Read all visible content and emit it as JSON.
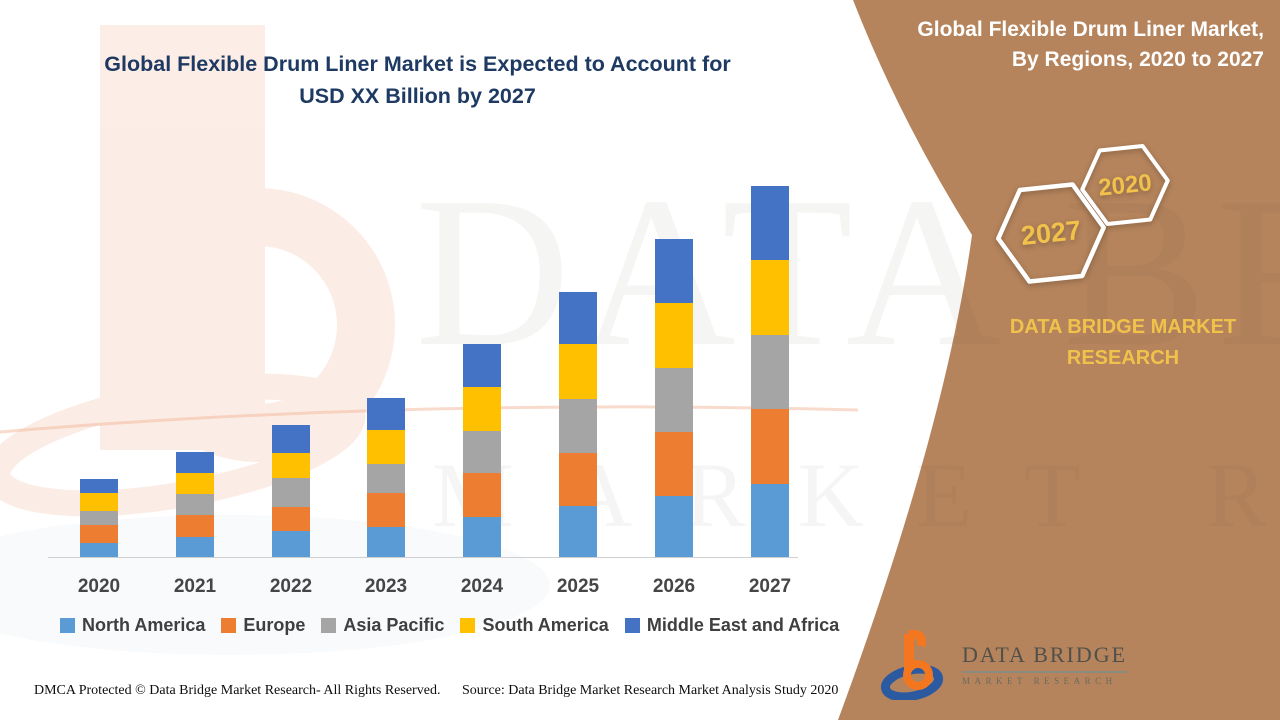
{
  "page": {
    "title_line1": "Global Flexible Drum Liner Market is Expected to Account for",
    "title_line2": "USD XX Billion by 2027",
    "footer_left": "DMCA Protected © Data Bridge Market Research- All Rights Reserved.",
    "footer_right": "Source: Data Bridge Market Research Market Analysis Study 2020"
  },
  "watermark": {
    "line1": "DATA BRIDGE",
    "line2": "MARKET RESEARCH"
  },
  "panel": {
    "title_line1": "Global Flexible Drum Liner Market,",
    "title_line2": "By Regions, 2020 to 2027",
    "hexagons": {
      "large_label": "2027",
      "small_label": "2020"
    },
    "brand_line1": "DATA BRIDGE MARKET",
    "brand_line2": "RESEARCH",
    "logo": {
      "title": "DATA BRIDGE",
      "subtitle": "MARKET RESEARCH"
    },
    "colors": {
      "panel_brown": "#b5845c",
      "accent_yellow": "#f1c24b"
    }
  },
  "chart_data": {
    "type": "bar",
    "stacked": true,
    "title": "Global Flexible Drum Liner Market, By Regions, 2020 to 2027",
    "xlabel": "",
    "ylabel": "",
    "y_axis_visible": false,
    "grid": false,
    "legend_position": "bottom",
    "categories": [
      "2020",
      "2021",
      "2022",
      "2023",
      "2024",
      "2025",
      "2026",
      "2027"
    ],
    "series": [
      {
        "name": "North America",
        "color": "#5B9BD5",
        "values": [
          15,
          21,
          27,
          31,
          41,
          52,
          62,
          74
        ]
      },
      {
        "name": "Europe",
        "color": "#ED7D31",
        "values": [
          18,
          22,
          24,
          34,
          44,
          53,
          64,
          75
        ]
      },
      {
        "name": "Asia Pacific",
        "color": "#A5A5A5",
        "values": [
          14,
          21,
          29,
          29,
          42,
          54,
          64,
          74
        ]
      },
      {
        "name": "South America",
        "color": "#FFC000",
        "values": [
          18,
          21,
          25,
          34,
          44,
          55,
          65,
          75
        ]
      },
      {
        "name": "Middle East and Africa",
        "color": "#4472C4",
        "values": [
          14,
          21,
          28,
          32,
          43,
          52,
          64,
          74
        ]
      }
    ],
    "note": "Y-axis unlabeled in source (USD XX Billion); values are relative estimates read from bar heights."
  }
}
